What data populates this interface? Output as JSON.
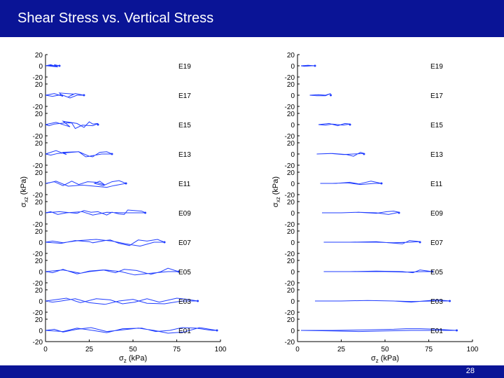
{
  "slide": {
    "title": "Shear Stress vs. Vertical Stress",
    "page_number": "28",
    "accent_color": "#0a1496",
    "line_color": "#1f3cff"
  },
  "chart_data": [
    {
      "type": "line",
      "title": "",
      "xlabel": "σz (kPa)",
      "xlabel_main": "σ",
      "xlabel_sub": "z",
      "xlabel_unit": " (kPa)",
      "ylabel": "σxz (kPa)",
      "ylabel_main": "σ",
      "ylabel_sub": "xz",
      "ylabel_unit": " (kPa)",
      "xlim": [
        0,
        100
      ],
      "xticks": [
        "0",
        "25",
        "50",
        "75",
        "100"
      ],
      "ylim": [
        -20,
        20
      ],
      "yticks_top": "20",
      "yticks_mid": "0",
      "yticks_bottom": "-20",
      "subplots": [
        {
          "label": "E19",
          "x": [
            0,
            3,
            6,
            2,
            8,
            5,
            7,
            1,
            4,
            0
          ],
          "y": [
            0,
            2,
            -1,
            1,
            0,
            2,
            -2,
            0,
            1,
            0
          ]
        },
        {
          "label": "E17",
          "x": [
            0,
            5,
            10,
            8,
            16,
            13,
            17,
            22,
            18,
            14,
            9,
            4,
            0
          ],
          "y": [
            0,
            3,
            -2,
            4,
            2,
            -3,
            3,
            0,
            0,
            -5,
            1,
            -2,
            0
          ]
        },
        {
          "label": "E15",
          "x": [
            0,
            6,
            14,
            10,
            18,
            22,
            25,
            27,
            30,
            27,
            21,
            17,
            15,
            11,
            5,
            2,
            0
          ],
          "y": [
            0,
            4,
            -4,
            6,
            2,
            -5,
            5,
            1,
            2,
            -2,
            -1,
            -7,
            3,
            3,
            1,
            -2,
            0
          ]
        },
        {
          "label": "E13",
          "x": [
            0,
            6,
            12,
            10,
            19,
            25,
            27,
            31,
            35,
            38,
            32,
            25,
            23,
            19,
            7,
            3,
            0
          ],
          "y": [
            0,
            6,
            -1,
            3,
            4,
            -4,
            -5,
            3,
            4,
            0,
            0,
            -4,
            -5,
            4,
            1,
            -2,
            0
          ]
        },
        {
          "label": "E11",
          "x": [
            0,
            5,
            10,
            15,
            19,
            24,
            29,
            34,
            31,
            28,
            33,
            38,
            42,
            46,
            39,
            35,
            28,
            21,
            13,
            6,
            2,
            0
          ],
          "y": [
            0,
            3,
            -4,
            4,
            -2,
            3,
            2,
            -3,
            4,
            0,
            -4,
            3,
            5,
            0,
            -4,
            -7,
            -5,
            -3,
            -5,
            4,
            1,
            0
          ]
        },
        {
          "label": "E09",
          "x": [
            0,
            8,
            18,
            22,
            26,
            30,
            35,
            38,
            42,
            45,
            47,
            55,
            57,
            45,
            35,
            27,
            21,
            12,
            7,
            3,
            0
          ],
          "y": [
            0,
            2,
            -1,
            4,
            1,
            2,
            -4,
            1,
            -2,
            -3,
            5,
            3,
            0,
            0,
            1,
            -4,
            2,
            0,
            -3,
            2,
            0
          ]
        },
        {
          "label": "E07",
          "x": [
            0,
            9,
            17,
            25,
            27,
            34,
            37,
            42,
            48,
            53,
            58,
            64,
            68,
            62,
            54,
            46,
            38,
            29,
            19,
            10,
            4,
            0
          ],
          "y": [
            0,
            -2,
            3,
            1,
            -1,
            3,
            4,
            -2,
            -6,
            4,
            2,
            5,
            0,
            0,
            -7,
            -3,
            2,
            5,
            3,
            -1,
            2,
            0
          ]
        },
        {
          "label": "E05",
          "x": [
            0,
            10,
            20,
            25,
            33,
            40,
            45,
            52,
            60,
            66,
            70,
            76,
            70,
            60,
            51,
            43,
            34,
            25,
            18,
            10,
            4,
            0
          ],
          "y": [
            0,
            3,
            -3,
            1,
            3,
            -2,
            4,
            2,
            -5,
            0,
            6,
            0,
            0,
            -3,
            -6,
            0,
            3,
            0,
            -4,
            4,
            -2,
            0
          ]
        },
        {
          "label": "E03",
          "x": [
            0,
            12,
            20,
            29,
            37,
            44,
            51,
            58,
            65,
            75,
            81,
            87,
            78,
            68,
            58,
            50,
            42,
            34,
            25,
            17,
            9,
            4,
            0
          ],
          "y": [
            0,
            5,
            -3,
            4,
            2,
            -5,
            -2,
            4,
            -2,
            5,
            3,
            0,
            0,
            -5,
            -4,
            3,
            0,
            -6,
            -3,
            4,
            0,
            -2,
            0
          ]
        },
        {
          "label": "E01",
          "x": [
            0,
            10,
            18,
            27,
            35,
            44,
            55,
            63,
            71,
            78,
            86,
            95,
            98,
            88,
            79,
            70,
            62,
            53,
            44,
            35,
            26,
            18,
            10,
            5,
            0
          ],
          "y": [
            0,
            -2,
            4,
            0,
            -4,
            3,
            4,
            -2,
            0,
            5,
            4,
            0,
            0,
            5,
            -3,
            -5,
            0,
            4,
            1,
            -2,
            5,
            2,
            -3,
            2,
            0
          ]
        }
      ]
    },
    {
      "type": "line",
      "title": "",
      "xlabel": "σz (kPa)",
      "xlabel_main": "σ",
      "xlabel_sub": "z",
      "xlabel_unit": " (kPa)",
      "ylabel": "σxz (kPa)",
      "ylabel_main": "σ",
      "ylabel_sub": "xz",
      "ylabel_unit": " (kPa)",
      "xlim": [
        0,
        100
      ],
      "xticks": [
        "0",
        "25",
        "50",
        "75",
        "100"
      ],
      "ylim": [
        -20,
        20
      ],
      "yticks_top": "20",
      "yticks_mid": "0",
      "yticks_bottom": "-20",
      "subplots": [
        {
          "label": "E19",
          "x": [
            2,
            6,
            10,
            8,
            4,
            2
          ],
          "y": [
            0,
            1,
            0,
            0,
            -1,
            0
          ]
        },
        {
          "label": "E17",
          "x": [
            7,
            12,
            16,
            19,
            16,
            11,
            7
          ],
          "y": [
            0,
            1,
            0,
            3,
            -1,
            -1,
            0
          ]
        },
        {
          "label": "E15",
          "x": [
            12,
            18,
            23,
            27,
            30,
            26,
            20,
            16,
            12
          ],
          "y": [
            0,
            2,
            -2,
            2,
            1,
            -1,
            1,
            -1,
            0
          ]
        },
        {
          "label": "E13",
          "x": [
            11,
            20,
            24,
            28,
            32,
            36,
            38,
            32,
            26,
            19,
            11
          ],
          "y": [
            0,
            1,
            0,
            -1,
            -4,
            3,
            1,
            0,
            -1,
            1,
            0
          ]
        },
        {
          "label": "E11",
          "x": [
            13,
            22,
            30,
            35,
            42,
            48,
            44,
            36,
            28,
            20,
            13
          ],
          "y": [
            0,
            0,
            2,
            -1,
            4,
            0,
            0,
            -2,
            1,
            0,
            0
          ]
        },
        {
          "label": "E09",
          "x": [
            14,
            25,
            35,
            45,
            51,
            55,
            58,
            52,
            45,
            35,
            25,
            14
          ],
          "y": [
            0,
            0,
            1,
            -1,
            2,
            3,
            1,
            -3,
            0,
            1,
            0,
            0
          ]
        },
        {
          "label": "E07",
          "x": [
            15,
            30,
            45,
            52,
            60,
            64,
            70,
            64,
            55,
            45,
            30,
            15
          ],
          "y": [
            0,
            0,
            1,
            -1,
            -3,
            3,
            1,
            0,
            -1,
            0,
            0,
            0
          ]
        },
        {
          "label": "E05",
          "x": [
            15,
            30,
            45,
            60,
            66,
            70,
            77,
            72,
            62,
            50,
            35,
            15
          ],
          "y": [
            0,
            0,
            1,
            0,
            -2,
            3,
            0,
            0,
            -1,
            0,
            0,
            0
          ]
        },
        {
          "label": "E03",
          "x": [
            10,
            25,
            40,
            55,
            65,
            72,
            80,
            87,
            78,
            65,
            55,
            40,
            25,
            10
          ],
          "y": [
            0,
            0,
            1,
            0,
            -2,
            0,
            2,
            0,
            0,
            -1,
            0,
            1,
            0,
            0
          ]
        },
        {
          "label": "E01",
          "x": [
            2,
            20,
            40,
            55,
            62,
            70,
            80,
            91,
            80,
            65,
            50,
            35,
            20,
            2
          ],
          "y": [
            0,
            0,
            1,
            2,
            3,
            3,
            2,
            0,
            0,
            0,
            -1,
            -2,
            -1,
            0
          ]
        }
      ]
    }
  ]
}
